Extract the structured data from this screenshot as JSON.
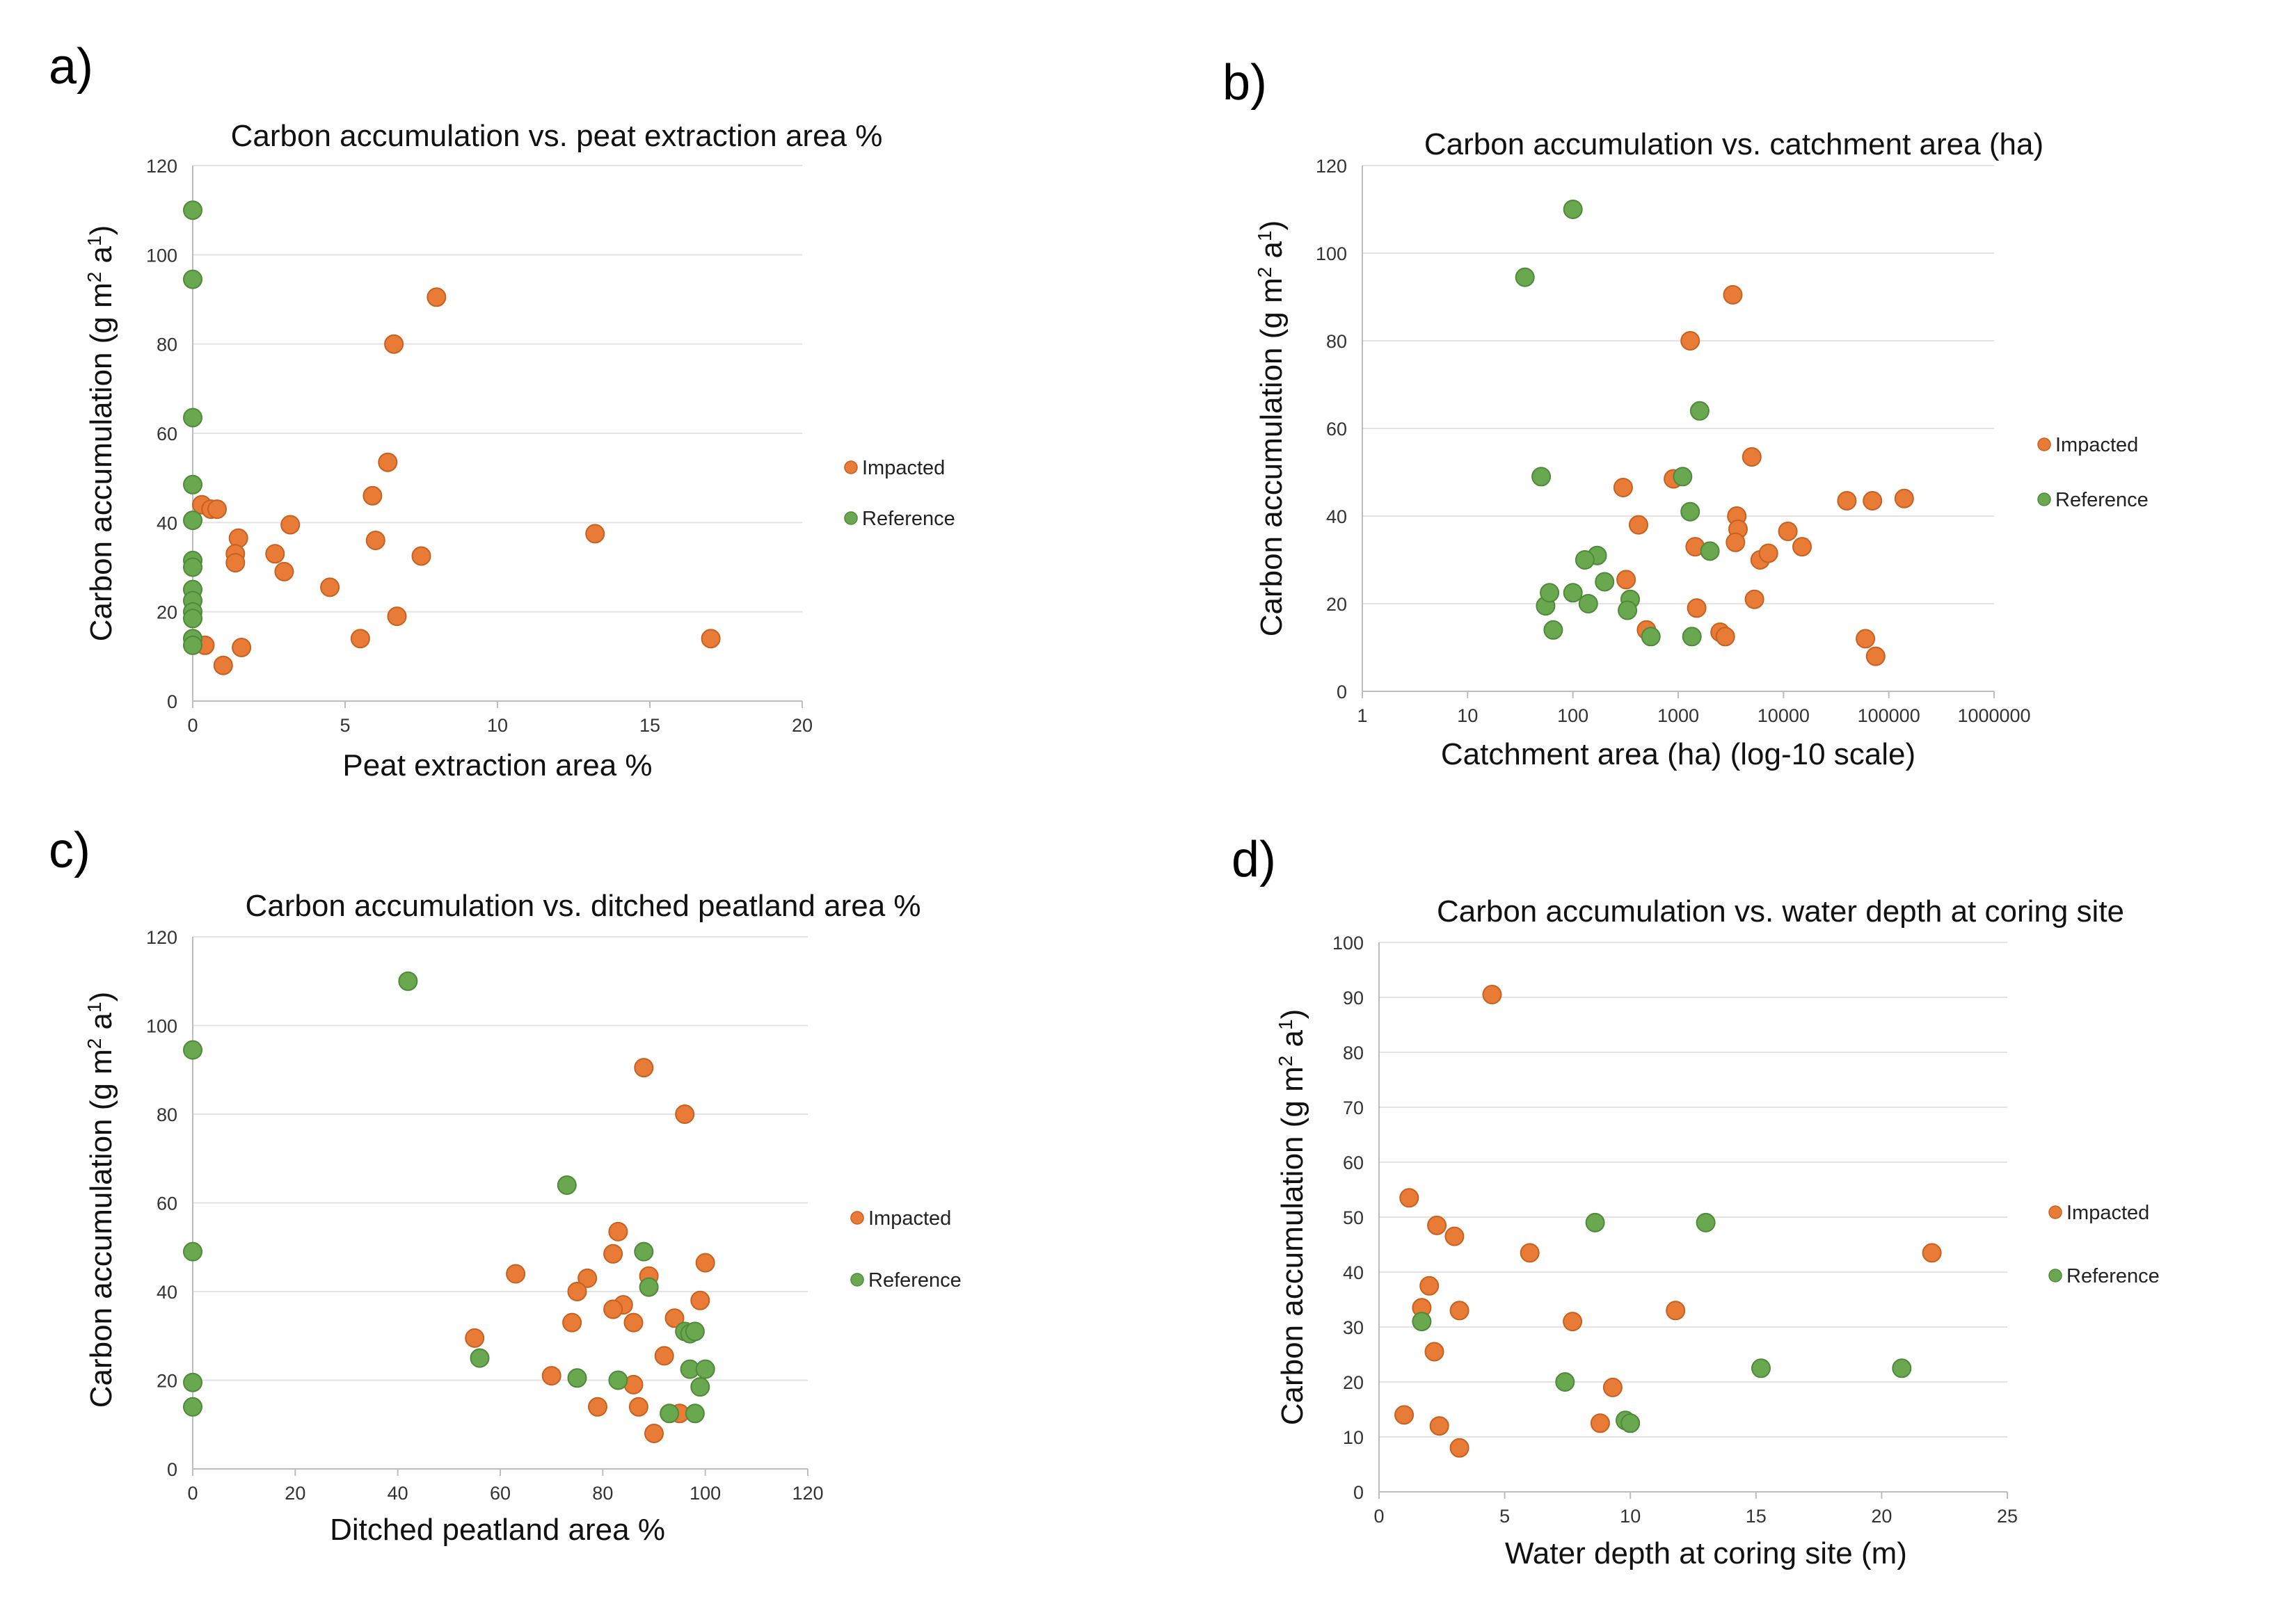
{
  "colors": {
    "impacted": "#E87B36",
    "reference": "#6AA84F",
    "impacted_edge": "#C8601F",
    "reference_edge": "#4E8A3A"
  },
  "chart_data": [
    {
      "type": "scatter",
      "panel_label": "a)",
      "title": "Carbon accumulation vs. peat extraction area %",
      "xlabel": "Peat extraction area %",
      "ylabel": "Carbon accumulation (g m2 a1)",
      "xscale": "linear",
      "xlim": [
        0,
        20
      ],
      "ylim": [
        0,
        120
      ],
      "xticks": [
        0,
        5,
        10,
        15,
        20
      ],
      "yticks": [
        0,
        20,
        40,
        60,
        80,
        100,
        120
      ],
      "legend": {
        "position": "right",
        "entries": [
          "Impacted",
          "Reference"
        ]
      },
      "series": [
        {
          "name": "Impacted",
          "points": [
            [
              0.3,
              44
            ],
            [
              0.6,
              43
            ],
            [
              0.8,
              43
            ],
            [
              1.5,
              36.5
            ],
            [
              1.4,
              33
            ],
            [
              1.4,
              31
            ],
            [
              2.7,
              33
            ],
            [
              3.0,
              29
            ],
            [
              3.2,
              39.5
            ],
            [
              4.5,
              25.5
            ],
            [
              5.5,
              14
            ],
            [
              5.9,
              46
            ],
            [
              6.0,
              36
            ],
            [
              6.4,
              53.5
            ],
            [
              6.6,
              80
            ],
            [
              6.7,
              19
            ],
            [
              7.5,
              32.5
            ],
            [
              8.0,
              90.5
            ],
            [
              13.2,
              37.5
            ],
            [
              17.0,
              14
            ],
            [
              0.4,
              12.5
            ],
            [
              1.0,
              8
            ],
            [
              1.6,
              12
            ]
          ]
        },
        {
          "name": "Reference",
          "points": [
            [
              0,
              110
            ],
            [
              0,
              94.5
            ],
            [
              0,
              63.5
            ],
            [
              0,
              48.5
            ],
            [
              0,
              40.5
            ],
            [
              0,
              31.5
            ],
            [
              0,
              30
            ],
            [
              0,
              25
            ],
            [
              0,
              22.5
            ],
            [
              0,
              20
            ],
            [
              0,
              18.5
            ],
            [
              0,
              14
            ],
            [
              0,
              12.5
            ]
          ]
        }
      ]
    },
    {
      "type": "scatter",
      "panel_label": "b)",
      "title": "Carbon accumulation vs. catchment area (ha)",
      "xlabel": "Catchment area (ha) (log-10 scale)",
      "ylabel": "Carbon accumulation (g m2 a1)",
      "xscale": "log10",
      "xlim": [
        1,
        1000000
      ],
      "ylim": [
        0,
        120
      ],
      "xticks": [
        1,
        10,
        100,
        1000,
        10000,
        100000,
        1000000
      ],
      "xticklabels": [
        "1",
        "10",
        "100",
        "1000",
        "10000",
        "100000",
        "1000000"
      ],
      "yticks": [
        0,
        20,
        40,
        60,
        80,
        100,
        120
      ],
      "legend": {
        "position": "right",
        "entries": [
          "Impacted",
          "Reference"
        ]
      },
      "series": [
        {
          "name": "Impacted",
          "points": [
            [
              300,
              46.5
            ],
            [
              900,
              48.5
            ],
            [
              420,
              38
            ],
            [
              1300,
              80
            ],
            [
              3300,
              90.5
            ],
            [
              5000,
              53.5
            ],
            [
              1450,
              33
            ],
            [
              1500,
              19
            ],
            [
              320,
              25.5
            ],
            [
              500,
              14
            ],
            [
              2500,
              13.5
            ],
            [
              2800,
              12.5
            ],
            [
              3600,
              40
            ],
            [
              3700,
              37
            ],
            [
              3500,
              34
            ],
            [
              5300,
              21
            ],
            [
              6000,
              30
            ],
            [
              7200,
              31.5
            ],
            [
              11000,
              36.5
            ],
            [
              15000,
              33
            ],
            [
              40000,
              43.5
            ],
            [
              70000,
              43.5
            ],
            [
              140000,
              44
            ],
            [
              60000,
              12
            ],
            [
              75000,
              8
            ]
          ]
        },
        {
          "name": "Reference",
          "points": [
            [
              35,
              94.5
            ],
            [
              100,
              110
            ],
            [
              50,
              49
            ],
            [
              1100,
              49
            ],
            [
              1600,
              64
            ],
            [
              1300,
              41
            ],
            [
              2000,
              32
            ],
            [
              100,
              22.5
            ],
            [
              55,
              19.5
            ],
            [
              60,
              22.5
            ],
            [
              65,
              14
            ],
            [
              140,
              20
            ],
            [
              170,
              31
            ],
            [
              130,
              30
            ],
            [
              200,
              25
            ],
            [
              350,
              21
            ],
            [
              330,
              18.5
            ],
            [
              550,
              12.5
            ],
            [
              1350,
              12.5
            ]
          ]
        }
      ]
    },
    {
      "type": "scatter",
      "panel_label": "c)",
      "title": "Carbon accumulation vs. ditched peatland area %",
      "xlabel": "Ditched peatland area %",
      "ylabel": "Carbon accumulation (g m2 a1)",
      "xscale": "linear",
      "xlim": [
        0,
        120
      ],
      "ylim": [
        0,
        120
      ],
      "xticks": [
        0,
        20,
        40,
        60,
        80,
        100,
        120
      ],
      "yticks": [
        0,
        20,
        40,
        60,
        80,
        100,
        120
      ],
      "legend": {
        "position": "right",
        "entries": [
          "Impacted",
          "Reference"
        ]
      },
      "series": [
        {
          "name": "Impacted",
          "points": [
            [
              88,
              90.5
            ],
            [
              96,
              80
            ],
            [
              83,
              53.5
            ],
            [
              82,
              48.5
            ],
            [
              100,
              46.5
            ],
            [
              63,
              44
            ],
            [
              89,
              43.5
            ],
            [
              77,
              43
            ],
            [
              75,
              40
            ],
            [
              99,
              38
            ],
            [
              84,
              37
            ],
            [
              82,
              36
            ],
            [
              94,
              34
            ],
            [
              74,
              33
            ],
            [
              86,
              33
            ],
            [
              55,
              29.5
            ],
            [
              92,
              25.5
            ],
            [
              70,
              21
            ],
            [
              86,
              19
            ],
            [
              79,
              14
            ],
            [
              87,
              14
            ],
            [
              95,
              12.5
            ],
            [
              90,
              8
            ]
          ]
        },
        {
          "name": "Reference",
          "points": [
            [
              42,
              110
            ],
            [
              0,
              94.5
            ],
            [
              73,
              64
            ],
            [
              0,
              49
            ],
            [
              88,
              49
            ],
            [
              89,
              41
            ],
            [
              96,
              31
            ],
            [
              97,
              30.5
            ],
            [
              98,
              31
            ],
            [
              56,
              25
            ],
            [
              97,
              22.5
            ],
            [
              100,
              22.5
            ],
            [
              75,
              20.5
            ],
            [
              83,
              20
            ],
            [
              0,
              19.5
            ],
            [
              99,
              18.5
            ],
            [
              0,
              14
            ],
            [
              93,
              12.5
            ],
            [
              98,
              12.5
            ]
          ]
        }
      ]
    },
    {
      "type": "scatter",
      "panel_label": "d)",
      "title": "Carbon accumulation vs. water depth at coring site",
      "xlabel": "Water depth at coring site (m)",
      "ylabel": "Carbon accumulation (g m2 a1)",
      "xscale": "linear",
      "xlim": [
        0,
        25
      ],
      "ylim": [
        0,
        100
      ],
      "xticks": [
        0,
        5,
        10,
        15,
        20,
        25
      ],
      "yticks": [
        0,
        10,
        20,
        30,
        40,
        50,
        60,
        70,
        80,
        90,
        100
      ],
      "legend": {
        "position": "right",
        "entries": [
          "Impacted",
          "Reference"
        ]
      },
      "series": [
        {
          "name": "Impacted",
          "points": [
            [
              4.5,
              90.5
            ],
            [
              1.2,
              53.5
            ],
            [
              2.3,
              48.5
            ],
            [
              3.0,
              46.5
            ],
            [
              6.0,
              43.5
            ],
            [
              22.0,
              43.5
            ],
            [
              2.0,
              37.5
            ],
            [
              1.7,
              33.5
            ],
            [
              3.2,
              33
            ],
            [
              11.8,
              33
            ],
            [
              7.7,
              31
            ],
            [
              2.2,
              25.5
            ],
            [
              9.3,
              19
            ],
            [
              1.0,
              14
            ],
            [
              2.4,
              12
            ],
            [
              8.8,
              12.5
            ],
            [
              3.2,
              8
            ]
          ]
        },
        {
          "name": "Reference",
          "points": [
            [
              8.6,
              49
            ],
            [
              13.0,
              49
            ],
            [
              1.7,
              31
            ],
            [
              7.4,
              20
            ],
            [
              15.2,
              22.5
            ],
            [
              20.8,
              22.5
            ],
            [
              9.8,
              13
            ],
            [
              10.0,
              12.5
            ]
          ]
        }
      ]
    }
  ]
}
